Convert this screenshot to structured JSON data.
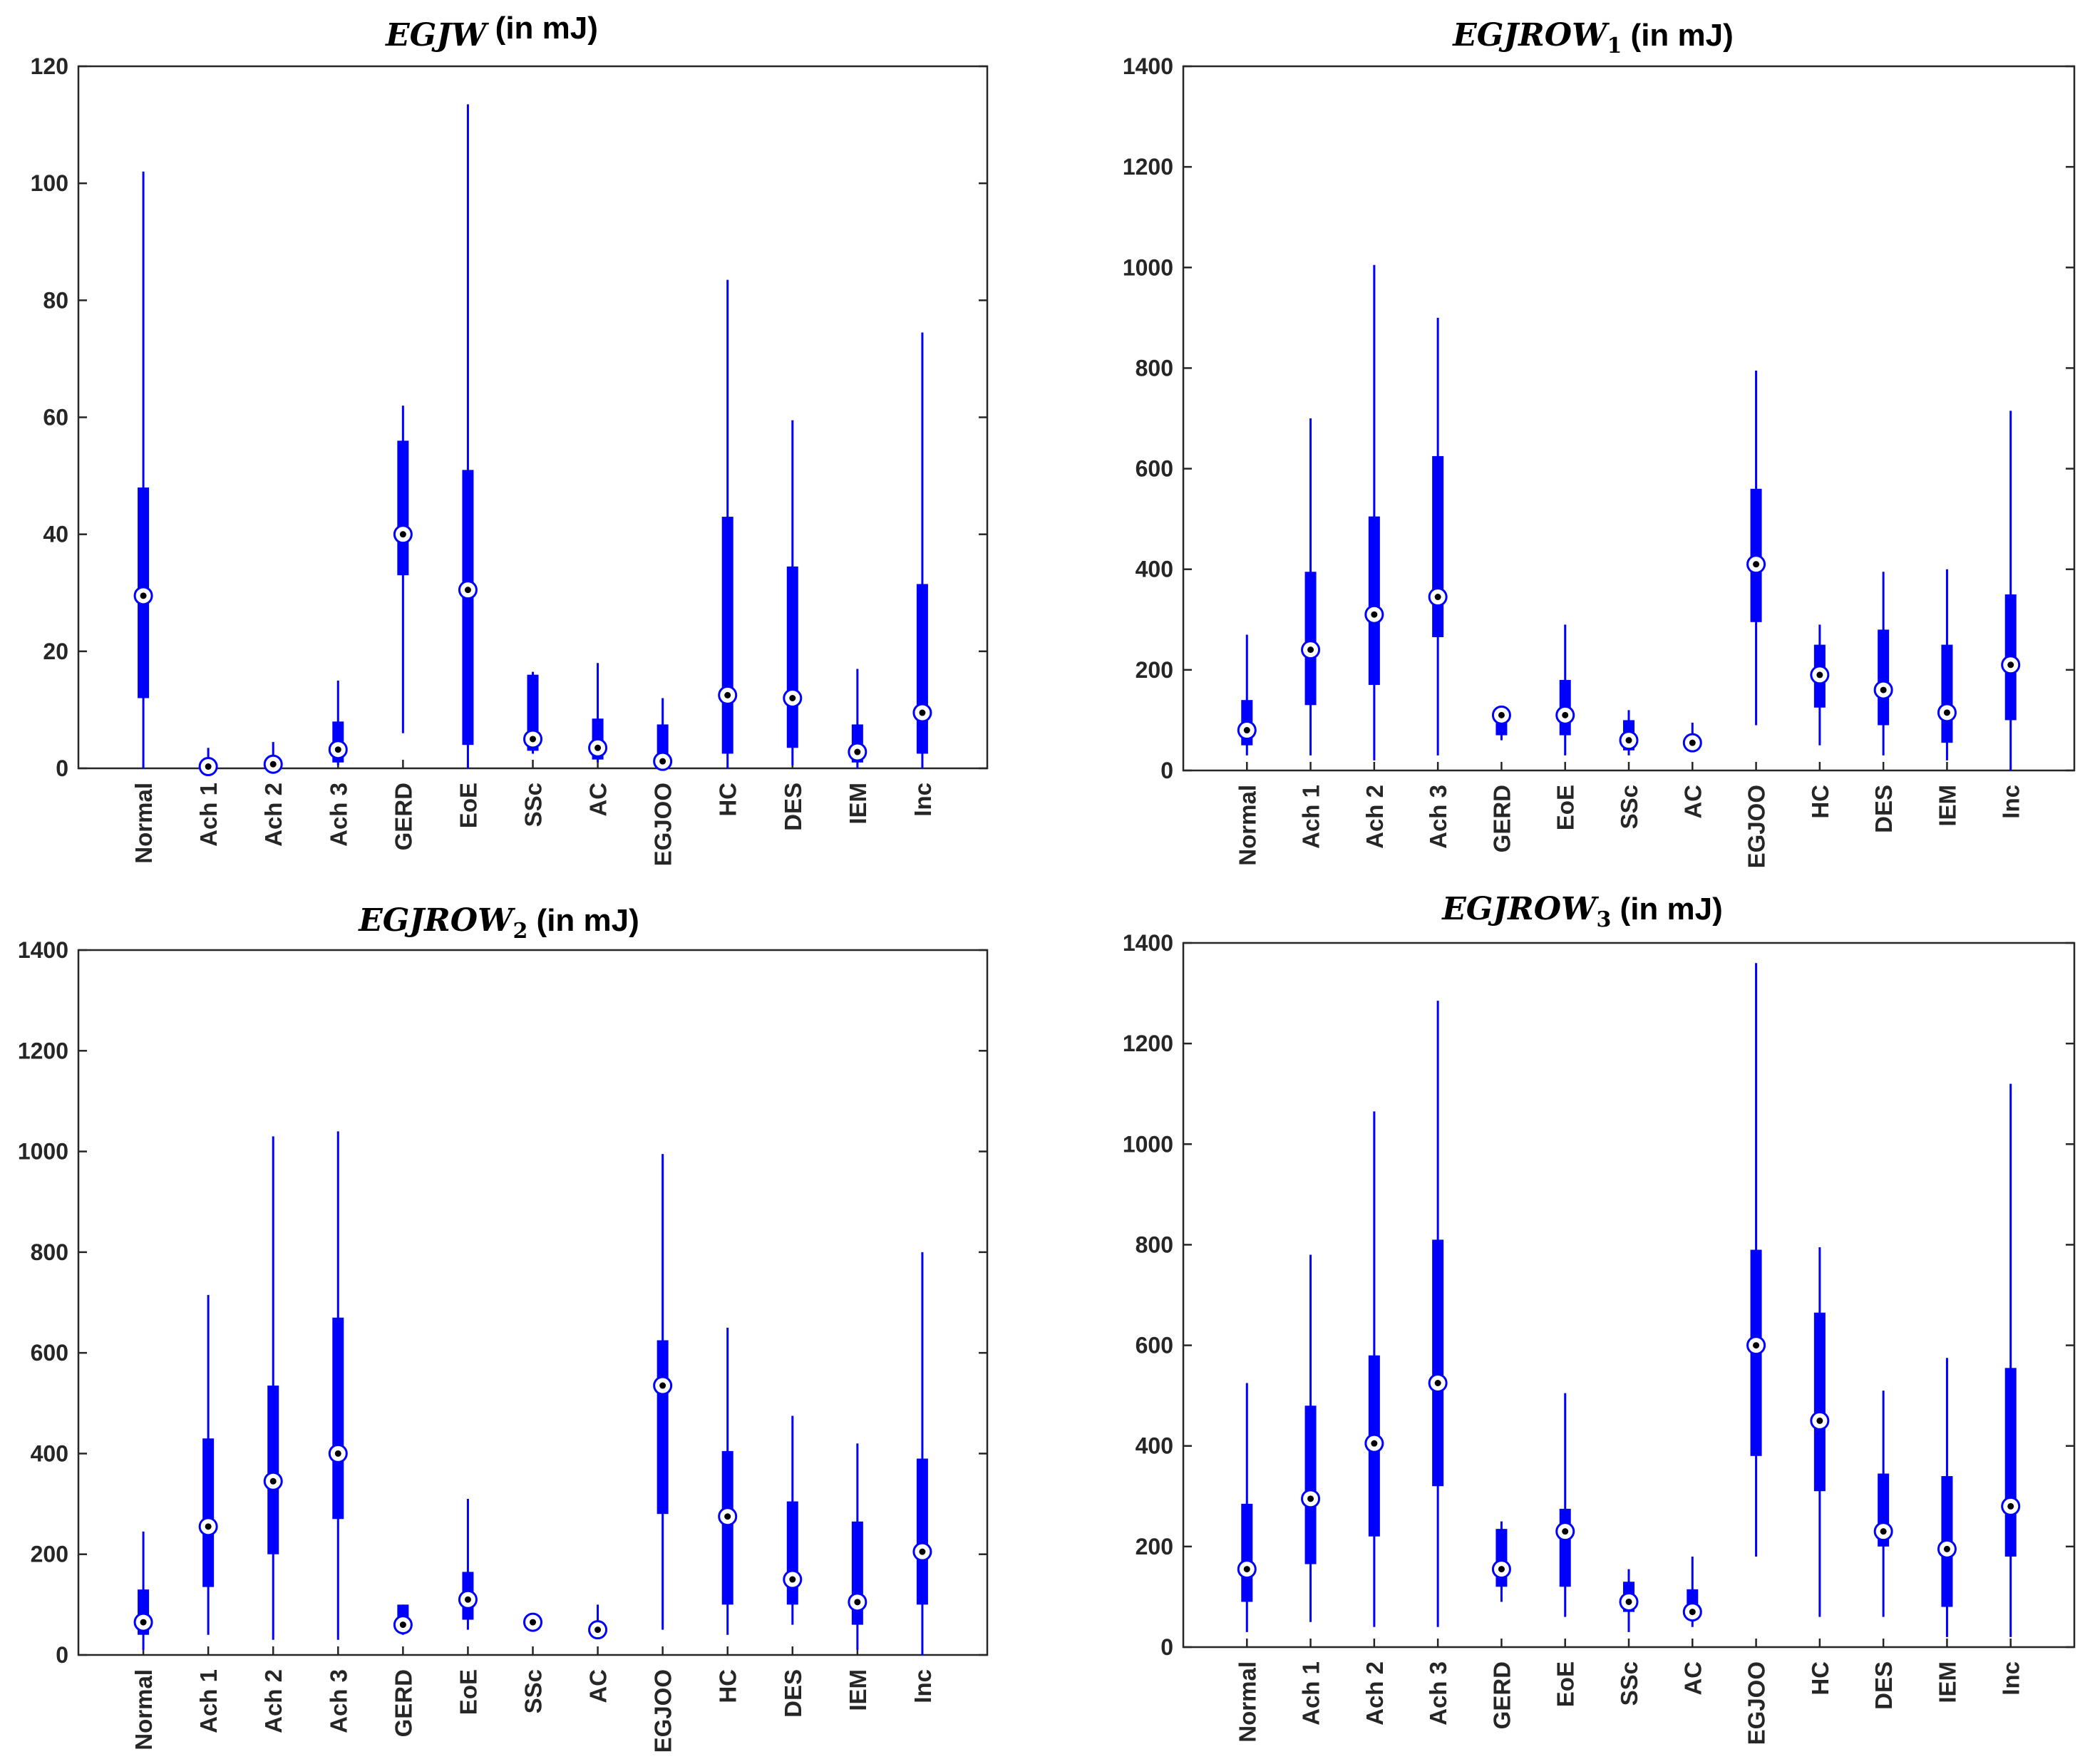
{
  "chart_data": [
    {
      "type": "boxplot",
      "title_math": "EGJW",
      "title_sub": "",
      "title_unit": " (in mJ)",
      "ylim": [
        0,
        120
      ],
      "yticks": [
        0,
        20,
        40,
        60,
        80,
        100,
        120
      ],
      "categories": [
        "Normal",
        "Ach 1",
        "Ach 2",
        "Ach 3",
        "GERD",
        "EoE",
        "SSc",
        "AC",
        "EGJOO",
        "HC",
        "DES",
        "IEM",
        "Inc"
      ],
      "whisker_low": [
        0,
        0,
        0,
        0.5,
        6,
        0,
        2.5,
        1,
        0,
        0,
        0.5,
        0,
        0
      ],
      "q1": [
        12,
        0,
        0,
        1,
        33,
        4,
        3,
        1.5,
        0.5,
        2.5,
        3.5,
        1,
        2.5
      ],
      "median": [
        29.5,
        0.3,
        0.7,
        3.2,
        40,
        30.5,
        5,
        3.5,
        1.2,
        12.5,
        12,
        2.8,
        9.5
      ],
      "q3": [
        48,
        0.5,
        1,
        8,
        56,
        51,
        16,
        8.5,
        7.5,
        43,
        34.5,
        7.5,
        31.5
      ],
      "whisker_high": [
        102,
        3.5,
        4.5,
        15,
        62,
        113.5,
        16.5,
        18,
        12,
        83.5,
        59.5,
        17,
        74.5
      ]
    },
    {
      "type": "boxplot",
      "title_math": "EGJROW",
      "title_sub": "1",
      "title_unit": " (in mJ)",
      "ylim": [
        0,
        1400
      ],
      "yticks": [
        0,
        200,
        400,
        600,
        800,
        1000,
        1200,
        1400
      ],
      "categories": [
        "Normal",
        "Ach 1",
        "Ach 2",
        "Ach 3",
        "GERD",
        "EoE",
        "SSc",
        "AC",
        "EGJOO",
        "HC",
        "DES",
        "IEM",
        "Inc"
      ],
      "whisker_low": [
        30,
        30,
        20,
        30,
        60,
        30,
        30,
        40,
        90,
        50,
        30,
        20,
        0
      ],
      "q1": [
        50,
        130,
        170,
        265,
        70,
        70,
        40,
        40,
        295,
        125,
        90,
        55,
        100
      ],
      "median": [
        80,
        240,
        310,
        345,
        110,
        110,
        60,
        55,
        410,
        190,
        160,
        115,
        210
      ],
      "q3": [
        140,
        395,
        505,
        625,
        120,
        180,
        100,
        60,
        560,
        250,
        280,
        250,
        350
      ],
      "whisker_high": [
        270,
        700,
        1005,
        900,
        120,
        290,
        120,
        95,
        795,
        290,
        395,
        400,
        715
      ]
    },
    {
      "type": "boxplot",
      "title_math": "EGJROW",
      "title_sub": "2",
      "title_unit": " (in mJ)",
      "ylim": [
        0,
        1400
      ],
      "yticks": [
        0,
        200,
        400,
        600,
        800,
        1000,
        1200,
        1400
      ],
      "categories": [
        "Normal",
        "Ach 1",
        "Ach 2",
        "Ach 3",
        "GERD",
        "EoE",
        "SSc",
        "AC",
        "EGJOO",
        "HC",
        "DES",
        "IEM",
        "Inc"
      ],
      "whisker_low": [
        10,
        40,
        30,
        30,
        40,
        50,
        55,
        35,
        50,
        40,
        60,
        10,
        0
      ],
      "q1": [
        40,
        135,
        200,
        270,
        50,
        70,
        55,
        40,
        280,
        100,
        100,
        60,
        100
      ],
      "median": [
        65,
        255,
        345,
        400,
        60,
        110,
        65,
        50,
        535,
        275,
        150,
        105,
        205
      ],
      "q3": [
        130,
        430,
        535,
        670,
        100,
        165,
        70,
        60,
        625,
        405,
        305,
        265,
        390
      ],
      "whisker_high": [
        245,
        715,
        1030,
        1040,
        100,
        310,
        70,
        100,
        995,
        650,
        475,
        420,
        800
      ]
    },
    {
      "type": "boxplot",
      "title_math": "EGJROW",
      "title_sub": "3",
      "title_unit": " (in mJ)",
      "ylim": [
        0,
        1400
      ],
      "yticks": [
        0,
        200,
        400,
        600,
        800,
        1000,
        1200,
        1400
      ],
      "categories": [
        "Normal",
        "Ach 1",
        "Ach 2",
        "Ach 3",
        "GERD",
        "EoE",
        "SSc",
        "AC",
        "EGJOO",
        "HC",
        "DES",
        "IEM",
        "Inc"
      ],
      "whisker_low": [
        30,
        50,
        40,
        40,
        90,
        60,
        30,
        40,
        180,
        60,
        60,
        20,
        20
      ],
      "q1": [
        90,
        165,
        220,
        320,
        120,
        120,
        70,
        60,
        380,
        310,
        200,
        80,
        180
      ],
      "median": [
        155,
        295,
        405,
        525,
        155,
        230,
        90,
        70,
        600,
        450,
        230,
        195,
        280
      ],
      "q3": [
        285,
        480,
        580,
        810,
        235,
        275,
        130,
        115,
        790,
        665,
        345,
        340,
        555
      ],
      "whisker_high": [
        525,
        780,
        1065,
        1285,
        250,
        505,
        155,
        180,
        1360,
        795,
        510,
        575,
        1120
      ]
    }
  ],
  "colors": {
    "box": "#0000ff",
    "axis": "#262626",
    "median_dot": "#000000"
  }
}
